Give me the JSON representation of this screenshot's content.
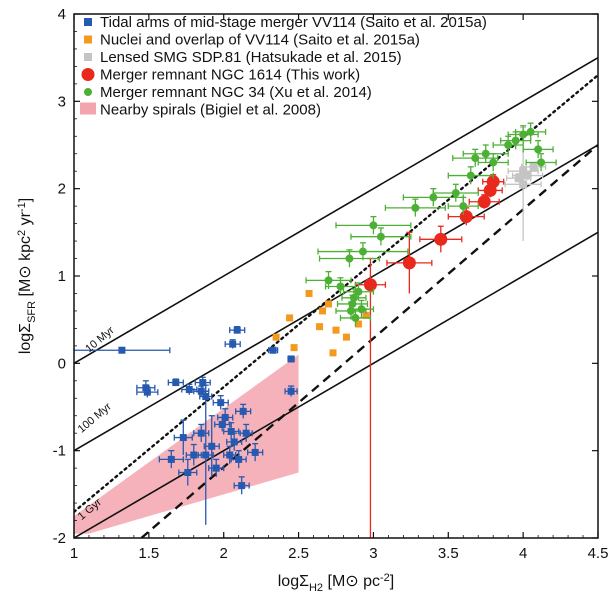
{
  "chart_data": {
    "type": "scatter",
    "xlabel": "logΣ_H2 [M⊙ pc^-2]",
    "ylabel": "logΣ_SFR [M⊙ kpc^2 yr^-1]",
    "xlim": [
      1,
      4.5
    ],
    "ylim": [
      -2,
      4
    ],
    "x_ticks": [
      "1",
      "1.5",
      "2",
      "2.5",
      "3",
      "3.5",
      "4",
      "4.5"
    ],
    "y_ticks": [
      "-2",
      "-1",
      "0",
      "1",
      "2",
      "3",
      "4"
    ],
    "grid": false,
    "legend_position": "top-left",
    "legend": [
      {
        "label": "Tidal arms of mid-stage merger VV114 (Saito et al. 2015a)",
        "color": "#2659b0",
        "marker": "square"
      },
      {
        "label": "Nuclei and overlap of VV114 (Saito et al. 2015a)",
        "color": "#f39a1e",
        "marker": "square"
      },
      {
        "label": "Lensed SMG SDP.81 (Hatsukade et al. 2015)",
        "color": "#c4c4c4",
        "marker": "square"
      },
      {
        "label": "Merger remnant NGC 1614 (This work)",
        "color": "#e8291c",
        "marker": "circle"
      },
      {
        "label": "Merger remnant NGC 34 (Xu et al. 2014)",
        "color": "#4cb035",
        "marker": "circle"
      },
      {
        "label": "Nearby spirals (Bigiel et al. 2008)",
        "color": "#f3a5ae",
        "marker": "patch"
      }
    ],
    "reference_lines": [
      {
        "label": "10 Myr",
        "style": "solid",
        "points": [
          [
            1,
            0.0
          ],
          [
            4.5,
            3.5
          ]
        ]
      },
      {
        "label": "100 Myr",
        "style": "solid",
        "points": [
          [
            1,
            -1.0
          ],
          [
            4.5,
            2.5
          ]
        ]
      },
      {
        "label": "1 Gyr",
        "style": "solid",
        "points": [
          [
            1,
            -2.0
          ],
          [
            4.5,
            1.5
          ]
        ]
      },
      {
        "label": "",
        "style": "dotted",
        "points": [
          [
            1,
            -1.7
          ],
          [
            4.5,
            3.3
          ]
        ]
      },
      {
        "label": "",
        "style": "dashed",
        "points": [
          [
            1.45,
            -2.0
          ],
          [
            4.5,
            2.5
          ]
        ]
      }
    ],
    "nearby_spirals_region": [
      [
        1,
        -1.95
      ],
      [
        1,
        -1.75
      ],
      [
        2.5,
        0.1
      ],
      [
        2.5,
        -1.25
      ],
      [
        1.1,
        -1.95
      ]
    ],
    "series": [
      {
        "name": "Tidal arms of mid-stage merger VV114 (Saito et al. 2015a)",
        "color": "#2659b0",
        "marker": "square",
        "points": [
          {
            "x": 1.32,
            "y": 0.15,
            "xerr": 0.32,
            "yerr": 0.03
          },
          {
            "x": 1.48,
            "y": -0.28,
            "xerr": 0.06,
            "yerr": 0.08
          },
          {
            "x": 1.49,
            "y": -0.33,
            "xerr": 0.07,
            "yerr": 0.06
          },
          {
            "x": 1.68,
            "y": -0.22,
            "xerr": 0.05,
            "yerr": 0.04
          },
          {
            "x": 1.77,
            "y": -0.3,
            "xerr": 0.05,
            "yerr": 0.06
          },
          {
            "x": 1.86,
            "y": -0.22,
            "xerr": 0.05,
            "yerr": 0.06
          },
          {
            "x": 1.85,
            "y": -0.32,
            "xerr": 0.05,
            "yerr": 0.06
          },
          {
            "x": 1.88,
            "y": -0.38,
            "xerr": 0.04,
            "yerr": 0.06
          },
          {
            "x": 1.98,
            "y": -0.45,
            "xerr": 0.05,
            "yerr": 0.08
          },
          {
            "x": 2.06,
            "y": 0.22,
            "xerr": 0.05,
            "yerr": 0.05
          },
          {
            "x": 2.09,
            "y": 0.38,
            "xerr": 0.05,
            "yerr": 0.04
          },
          {
            "x": 2.13,
            "y": -0.55,
            "xerr": 0.05,
            "yerr": 0.08
          },
          {
            "x": 1.65,
            "y": -1.1,
            "xerr": 0.08,
            "yerr": 0.1
          },
          {
            "x": 1.73,
            "y": -0.85,
            "xerr": 0.06,
            "yerr": 0.2
          },
          {
            "x": 1.76,
            "y": -1.25,
            "xerr": 0.06,
            "yerr": 0.15
          },
          {
            "x": 1.8,
            "y": -1.05,
            "xerr": 0.05,
            "yerr": 0.12
          },
          {
            "x": 1.85,
            "y": -0.8,
            "xerr": 0.05,
            "yerr": 0.1
          },
          {
            "x": 1.88,
            "y": -1.05,
            "xerr": 0.05,
            "yerr": 0.8
          },
          {
            "x": 1.92,
            "y": -0.95,
            "xerr": 0.05,
            "yerr": 0.35
          },
          {
            "x": 1.95,
            "y": -1.2,
            "xerr": 0.05,
            "yerr": 0.1
          },
          {
            "x": 1.99,
            "y": -0.7,
            "xerr": 0.05,
            "yerr": 0.08
          },
          {
            "x": 2.01,
            "y": -0.62,
            "xerr": 0.05,
            "yerr": 0.1
          },
          {
            "x": 2.04,
            "y": -1.05,
            "xerr": 0.04,
            "yerr": 0.1
          },
          {
            "x": 2.05,
            "y": -0.78,
            "xerr": 0.05,
            "yerr": 0.1
          },
          {
            "x": 2.07,
            "y": -0.9,
            "xerr": 0.05,
            "yerr": 0.1
          },
          {
            "x": 2.1,
            "y": -1.1,
            "xerr": 0.05,
            "yerr": 0.1
          },
          {
            "x": 2.12,
            "y": -1.4,
            "xerr": 0.05,
            "yerr": 0.1
          },
          {
            "x": 2.15,
            "y": -0.8,
            "xerr": 0.04,
            "yerr": 0.1
          },
          {
            "x": 2.21,
            "y": -1.02,
            "xerr": 0.05,
            "yerr": 0.1
          },
          {
            "x": 2.45,
            "y": -0.32,
            "xerr": 0.04,
            "yerr": 0.06
          },
          {
            "x": 2.45,
            "y": 0.05,
            "xerr": 0.02,
            "yerr": 0.03
          },
          {
            "x": 2.33,
            "y": 0.15,
            "xerr": 0.03,
            "yerr": 0.03
          }
        ]
      },
      {
        "name": "Nuclei and overlap of VV114 (Saito et al. 2015a)",
        "color": "#f39a1e",
        "marker": "square",
        "points": [
          {
            "x": 2.35,
            "y": 0.3
          },
          {
            "x": 2.44,
            "y": 0.52
          },
          {
            "x": 2.47,
            "y": 0.18
          },
          {
            "x": 2.57,
            "y": 0.8
          },
          {
            "x": 2.64,
            "y": 0.42
          },
          {
            "x": 2.66,
            "y": 0.6
          },
          {
            "x": 2.7,
            "y": 0.68
          },
          {
            "x": 2.73,
            "y": 0.12
          },
          {
            "x": 2.75,
            "y": 0.38
          },
          {
            "x": 2.82,
            "y": 0.3
          },
          {
            "x": 2.9,
            "y": 0.45
          },
          {
            "x": 2.95,
            "y": 0.55
          }
        ]
      },
      {
        "name": "Lensed SMG SDP.81 (Hatsukade et al. 2015)",
        "color": "#c4c4c4",
        "marker": "square",
        "points": [
          {
            "x": 4.0,
            "y": 2.05,
            "xerr": 0.12,
            "yerr": 0.65
          },
          {
            "x": 4.0,
            "y": 2.2,
            "xerr": 0.1,
            "yerr": 0.05
          },
          {
            "x": 4.03,
            "y": 2.15,
            "xerr": 0.1,
            "yerr": 0.05
          },
          {
            "x": 4.07,
            "y": 2.25,
            "xerr": 0.08,
            "yerr": 0.05
          },
          {
            "x": 3.97,
            "y": 2.12,
            "xerr": 0.08,
            "yerr": 0.05
          }
        ]
      },
      {
        "name": "Merger remnant NGC 1614 (This work)",
        "color": "#e8291c",
        "marker": "circle",
        "points": [
          {
            "x": 2.98,
            "y": 0.9,
            "xerr": 0.1,
            "yerr_low": 2.9,
            "yerr_high": 0.3
          },
          {
            "x": 3.24,
            "y": 1.15,
            "xerr": 0.15,
            "yerr": 0.35
          },
          {
            "x": 3.45,
            "y": 1.42,
            "xerr": 0.14,
            "yerr": 0.15
          },
          {
            "x": 3.62,
            "y": 1.68,
            "xerr": 0.12,
            "yerr": 0.1
          },
          {
            "x": 3.74,
            "y": 1.85,
            "xerr": 0.1,
            "yerr": 0.08
          },
          {
            "x": 3.78,
            "y": 1.98,
            "xerr": 0.08,
            "yerr": 0.08
          },
          {
            "x": 3.8,
            "y": 2.08,
            "xerr": 0.07,
            "yerr": 0.08
          }
        ]
      },
      {
        "name": "Merger remnant NGC 34 (Xu et al. 2014)",
        "color": "#4cb035",
        "marker": "circle",
        "points": [
          {
            "x": 2.85,
            "y": 0.6,
            "xerr": 0.1,
            "yerr": 0.1
          },
          {
            "x": 2.86,
            "y": 0.68,
            "xerr": 0.1,
            "yerr": 0.1
          },
          {
            "x": 2.87,
            "y": 0.75,
            "xerr": 0.08,
            "yerr": 0.1
          },
          {
            "x": 2.88,
            "y": 0.52,
            "xerr": 0.1,
            "yerr": 0.1
          },
          {
            "x": 2.9,
            "y": 0.82,
            "xerr": 0.1,
            "yerr": 0.1
          },
          {
            "x": 2.92,
            "y": 0.62,
            "xerr": 0.08,
            "yerr": 0.1
          },
          {
            "x": 2.84,
            "y": 1.2,
            "xerr": 0.2,
            "yerr": 0.1
          },
          {
            "x": 2.93,
            "y": 1.28,
            "xerr": 0.3,
            "yerr": 0.1
          },
          {
            "x": 3.0,
            "y": 1.58,
            "xerr": 0.25,
            "yerr": 0.1
          },
          {
            "x": 3.05,
            "y": 1.45,
            "xerr": 0.2,
            "yerr": 0.1
          },
          {
            "x": 3.28,
            "y": 1.78,
            "xerr": 0.2,
            "yerr": 0.1
          },
          {
            "x": 3.4,
            "y": 1.9,
            "xerr": 0.2,
            "yerr": 0.1
          },
          {
            "x": 3.55,
            "y": 1.95,
            "xerr": 0.15,
            "yerr": 0.1
          },
          {
            "x": 3.65,
            "y": 2.15,
            "xerr": 0.15,
            "yerr": 0.1
          },
          {
            "x": 3.68,
            "y": 2.35,
            "xerr": 0.15,
            "yerr": 0.1
          },
          {
            "x": 3.75,
            "y": 2.4,
            "xerr": 0.15,
            "yerr": 0.1
          },
          {
            "x": 3.8,
            "y": 2.3,
            "xerr": 0.1,
            "yerr": 0.1
          },
          {
            "x": 3.9,
            "y": 2.5,
            "xerr": 0.1,
            "yerr": 0.1
          },
          {
            "x": 3.95,
            "y": 2.55,
            "xerr": 0.1,
            "yerr": 0.1
          },
          {
            "x": 4.0,
            "y": 2.62,
            "xerr": 0.1,
            "yerr": 0.1
          },
          {
            "x": 4.05,
            "y": 2.65,
            "xerr": 0.1,
            "yerr": 0.1
          },
          {
            "x": 4.1,
            "y": 2.45,
            "xerr": 0.1,
            "yerr": 0.1
          },
          {
            "x": 4.12,
            "y": 2.3,
            "xerr": 0.1,
            "yerr": 0.1
          },
          {
            "x": 3.6,
            "y": 1.8,
            "xerr": 0.1,
            "yerr": 0.1
          },
          {
            "x": 2.7,
            "y": 0.95,
            "xerr": 0.15,
            "yerr": 0.1
          },
          {
            "x": 2.78,
            "y": 0.88,
            "xerr": 0.1,
            "yerr": 0.1
          }
        ]
      }
    ]
  }
}
